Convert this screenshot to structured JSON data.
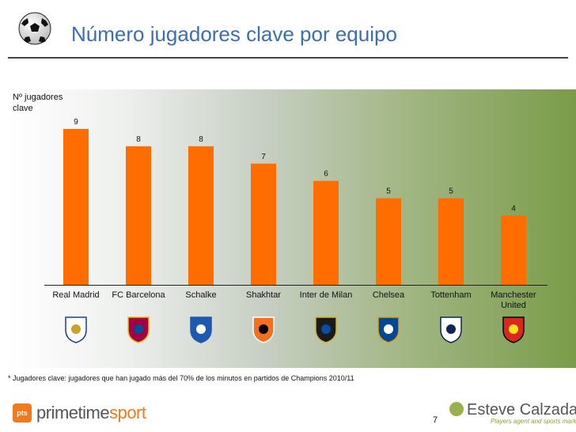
{
  "header": {
    "title": "Número jugadores clave por equipo",
    "icon": "soccer-ball-icon"
  },
  "chart_data": {
    "type": "bar",
    "title": "Número jugadores clave por equipo",
    "ylabel": "Nº jugadores clave",
    "xlabel": "",
    "categories": [
      "Real Madrid",
      "FC Barcelona",
      "Schalke",
      "Shakhtar",
      "Inter de Milan",
      "Chelsea",
      "Tottenham",
      "Manchester United"
    ],
    "values": [
      9,
      8,
      8,
      7,
      6,
      5,
      5,
      4
    ],
    "ylim": [
      0,
      9
    ],
    "grid": false,
    "legend": "none",
    "bar_color": "#ff6d00",
    "team_logos": [
      "real-madrid-crest-icon",
      "fc-barcelona-crest-icon",
      "schalke-crest-icon",
      "shakhtar-crest-icon",
      "inter-milan-crest-icon",
      "chelsea-crest-icon",
      "tottenham-crest-icon",
      "manchester-united-crest-icon"
    ]
  },
  "footnote": "* Jugadores clave: jugadores que han jugado más del 70% de los minutos en partidos de Champions 2010/11",
  "footer": {
    "page_number": "7",
    "left_brand": {
      "icon_text": "pts",
      "name_part1": "primetime",
      "name_part2": "sport",
      "color": "#f07a1e"
    },
    "right_brand": {
      "name": "Esteve Calzada",
      "tagline": "Players agent and sports marketers",
      "color": "#8aa43c"
    }
  },
  "colors": {
    "title": "#3a6fb0",
    "bar": "#ff6d00",
    "gradient_start": "#ffffff",
    "gradient_end": "#7a9c48"
  }
}
